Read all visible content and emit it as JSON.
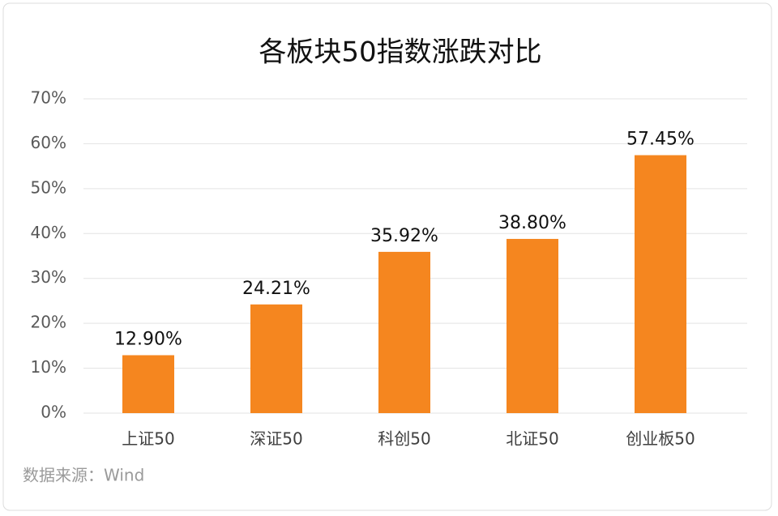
{
  "chart_data": {
    "type": "bar",
    "title": "各板块50指数涨跌对比",
    "categories": [
      "上证50",
      "深证50",
      "科创50",
      "北证50",
      "创业板50"
    ],
    "values": [
      12.9,
      24.21,
      35.92,
      38.8,
      57.45
    ],
    "value_labels": [
      "12.90%",
      "24.21%",
      "35.92%",
      "38.80%",
      "57.45%"
    ],
    "color": "#f5861f",
    "ylim": [
      0,
      70
    ],
    "yticks": [
      {
        "value": 0,
        "label": "0%"
      },
      {
        "value": 10,
        "label": "10%"
      },
      {
        "value": 20,
        "label": "20%"
      },
      {
        "value": 30,
        "label": "30%"
      },
      {
        "value": 40,
        "label": "40%"
      },
      {
        "value": 50,
        "label": "50%"
      },
      {
        "value": 60,
        "label": "60%"
      },
      {
        "value": 70,
        "label": "70%"
      }
    ],
    "grid": true,
    "source": "数据来源：Wind"
  }
}
